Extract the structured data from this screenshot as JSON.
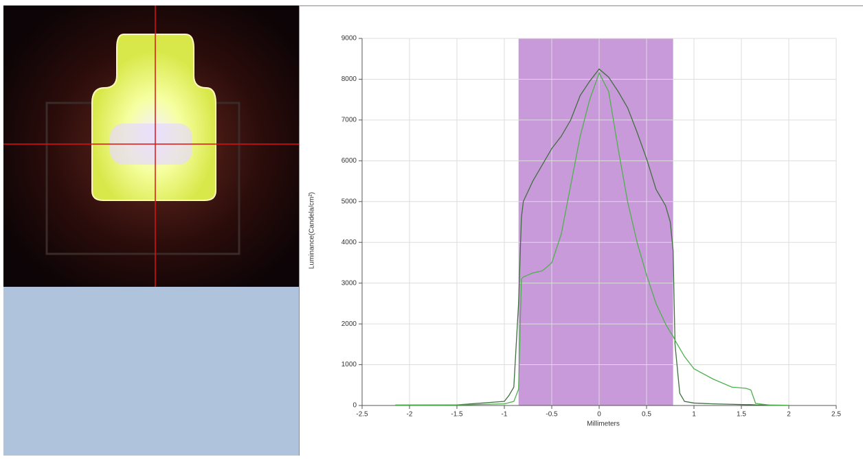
{
  "chart_data": {
    "type": "line",
    "x_label": "Millimeters",
    "y_label": "Luminance(Candela/cm²)",
    "x": [
      -2.15,
      -1.5,
      -1,
      -0.95,
      -0.9,
      -0.85,
      -0.82,
      -0.8,
      -0.7,
      -0.6,
      -0.5,
      -0.4,
      -0.3,
      -0.2,
      -0.1,
      0,
      0.1,
      0.2,
      0.3,
      0.4,
      0.5,
      0.6,
      0.7,
      0.75,
      0.78,
      0.8,
      0.85,
      0.9,
      1,
      1.2,
      1.4,
      1.55,
      1.6,
      1.65,
      1.8,
      2
    ],
    "series": [
      {
        "color": "#3f6e3f",
        "values": [
          10,
          15,
          100,
          250,
          450,
          2500,
          4600,
          5000,
          5500,
          5900,
          6300,
          6600,
          7000,
          7600,
          7950,
          8250,
          8050,
          7700,
          7300,
          6700,
          6050,
          5300,
          4900,
          4500,
          3800,
          1500,
          300,
          100,
          60,
          40,
          30,
          20,
          20,
          15,
          10,
          5
        ]
      },
      {
        "color": "#4cb04c",
        "values": [
          10,
          12,
          40,
          70,
          100,
          400,
          3100,
          3150,
          3250,
          3300,
          3500,
          4200,
          5400,
          6600,
          7500,
          8150,
          7700,
          6300,
          5000,
          4000,
          3200,
          2500,
          2000,
          1800,
          1700,
          1600,
          1400,
          1200,
          900,
          650,
          450,
          420,
          380,
          50,
          10,
          5
        ]
      }
    ],
    "highlight_range": [
      -0.85,
      0.78
    ],
    "highlight_color": "#c99ad9",
    "xlim": [
      -2.5,
      2.5
    ],
    "xticks": [
      -2.5,
      -2,
      -1.5,
      -1,
      -0.5,
      0,
      0.5,
      1,
      1.5,
      2,
      2.5
    ],
    "ylim": [
      0,
      9000
    ],
    "yticks": [
      0,
      1000,
      2000,
      3000,
      4000,
      5000,
      6000,
      7000,
      8000,
      9000
    ],
    "grid": true
  }
}
